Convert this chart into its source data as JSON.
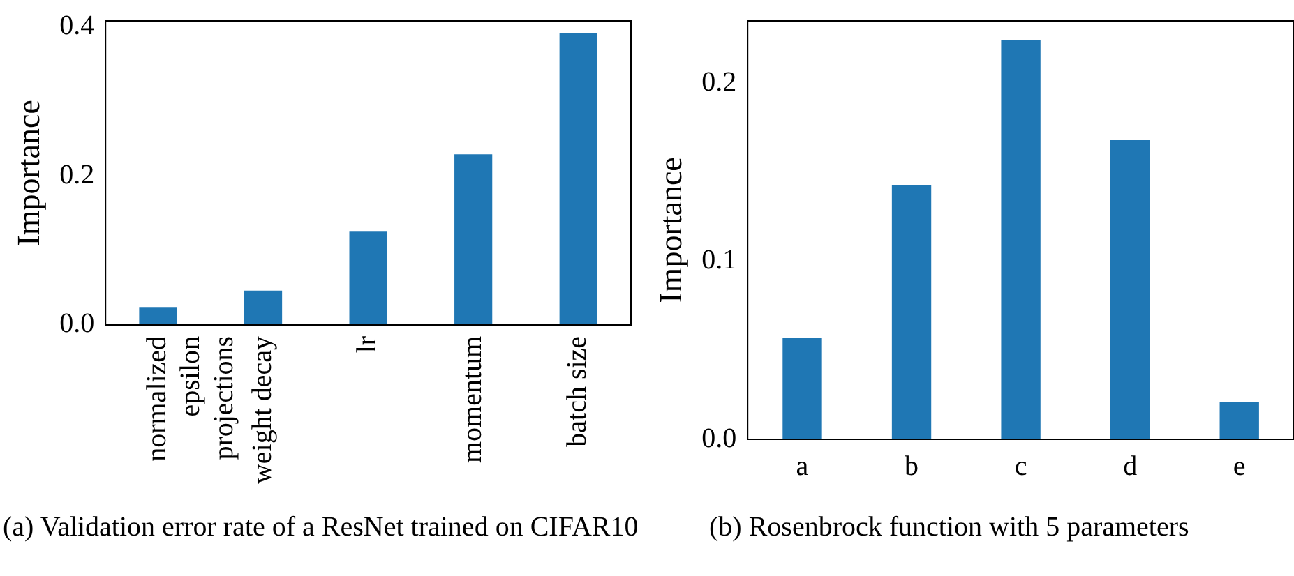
{
  "chart_data": [
    {
      "type": "bar",
      "title": "(a)  Validation error rate of a ResNet trained on CIFAR10",
      "ylabel": "Importance",
      "categories": [
        "normalized epsilon projections",
        "weight decay",
        "lr",
        "momentum",
        "batch size"
      ],
      "values": [
        0.024,
        0.046,
        0.126,
        0.229,
        0.392
      ],
      "color": "#1f77b4",
      "ylim": [
        0,
        0.408
      ],
      "yticks": [
        {
          "value": 0,
          "label": "0.0"
        },
        {
          "value": 0.2,
          "label": "0.2"
        },
        {
          "value": 0.4,
          "label": "0.4"
        }
      ],
      "grid": false,
      "legend": false
    },
    {
      "type": "bar",
      "title": "(b)  Rosenbrock function with 5 parameters",
      "ylabel": "Importance",
      "categories": [
        "a",
        "b",
        "c",
        "d",
        "e"
      ],
      "values": [
        0.057,
        0.143,
        0.224,
        0.168,
        0.021
      ],
      "color": "#1f77b4",
      "ylim": [
        0,
        0.235
      ],
      "yticks": [
        {
          "value": 0,
          "label": "0.0"
        },
        {
          "value": 0.1,
          "label": "0.1"
        },
        {
          "value": 0.2,
          "label": "0.2"
        }
      ],
      "grid": false,
      "legend": false
    }
  ]
}
